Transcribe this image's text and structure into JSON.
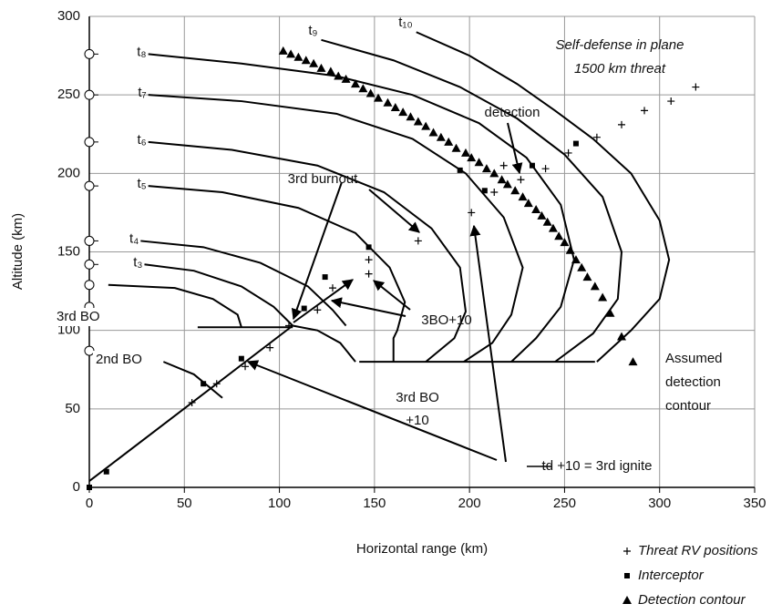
{
  "chart_data": {
    "type": "scatter",
    "xlabel": "Horizontal range (km)",
    "ylabel": "Altitude (km)",
    "xlim": [
      0,
      350
    ],
    "xticks": [
      0,
      50,
      100,
      150,
      200,
      250,
      300,
      350
    ],
    "ylim": [
      0,
      300
    ],
    "yticks": [
      0,
      50,
      100,
      150,
      200,
      250,
      300
    ],
    "grid": true,
    "legend": "lower right",
    "series": [
      {
        "name": "Threat RV positions",
        "marker": "plus",
        "color": "#000000",
        "x": [
          54,
          67,
          82,
          95,
          105,
          120,
          128,
          147,
          147,
          173,
          201,
          213,
          218,
          227,
          240,
          252,
          267,
          280,
          292,
          306,
          319
        ],
        "values": [
          54,
          66,
          77,
          89,
          103,
          113,
          127,
          136,
          145,
          157,
          175,
          188,
          205,
          196,
          203,
          213,
          223,
          231,
          240,
          246,
          255
        ]
      },
      {
        "name": "Interceptor",
        "marker": "square",
        "color": "#000000",
        "x": [
          0,
          9,
          60,
          80,
          113,
          124,
          147,
          195,
          208,
          233,
          256
        ],
        "values": [
          0,
          10,
          66,
          82,
          114,
          134,
          153,
          202,
          189,
          205,
          219
        ]
      },
      {
        "name": "Detection contour",
        "marker": "triangle",
        "color": "#000000",
        "x": [
          102,
          106,
          110,
          114,
          118,
          122,
          127,
          131,
          135,
          140,
          144,
          148,
          152,
          157,
          161,
          165,
          169,
          173,
          177,
          181,
          185,
          189,
          193,
          198,
          201,
          205,
          209,
          213,
          217,
          220,
          224,
          228,
          231,
          235,
          238,
          241,
          244,
          247,
          250,
          253,
          256,
          259,
          262,
          266,
          270,
          274,
          280,
          286
        ],
        "values": [
          278,
          276,
          274,
          272,
          270,
          267,
          265,
          262,
          260,
          257,
          254,
          251,
          248,
          245,
          242,
          239,
          236,
          233,
          230,
          226,
          223,
          220,
          216,
          213,
          210,
          207,
          203,
          200,
          196,
          193,
          189,
          185,
          181,
          177,
          173,
          169,
          165,
          160,
          156,
          151,
          145,
          140,
          134,
          128,
          121,
          111,
          96,
          80
        ]
      }
    ],
    "contour_color": "#000000",
    "contours": [
      {
        "label": "t₁₀",
        "x": [
          172,
          200,
          225,
          245,
          265,
          285,
          300,
          305,
          300,
          285,
          267
        ],
        "y": [
          290,
          275,
          257,
          240,
          222,
          200,
          170,
          145,
          120,
          100,
          80
        ]
      },
      {
        "label": "t₉",
        "x": [
          122,
          160,
          195,
          225,
          250,
          270,
          280,
          278,
          265,
          245
        ],
        "y": [
          285,
          272,
          255,
          235,
          212,
          185,
          150,
          120,
          98,
          80
        ]
      },
      {
        "label": "t₈",
        "x": [
          31,
          80,
          130,
          170,
          205,
          230,
          248,
          255,
          248,
          235,
          222
        ],
        "y": [
          276,
          270,
          262,
          250,
          232,
          210,
          180,
          145,
          115,
          95,
          80
        ]
      },
      {
        "label": "t₇",
        "x": [
          31,
          80,
          130,
          170,
          198,
          218,
          228,
          222,
          212,
          197
        ],
        "y": [
          250,
          246,
          238,
          222,
          200,
          172,
          140,
          110,
          92,
          80
        ]
      },
      {
        "label": "t₆",
        "x": [
          31,
          75,
          120,
          155,
          180,
          195,
          198,
          192,
          177
        ],
        "y": [
          220,
          215,
          205,
          188,
          165,
          140,
          112,
          95,
          80
        ]
      },
      {
        "label": "t₅",
        "x": [
          31,
          70,
          110,
          140,
          158,
          166,
          162,
          160,
          160
        ],
        "y": [
          192,
          188,
          178,
          162,
          140,
          118,
          100,
          95,
          80
        ]
      },
      {
        "label": "t₄",
        "x": [
          27,
          60,
          90,
          115,
          128,
          135
        ],
        "y": [
          157,
          153,
          143,
          128,
          113,
          103
        ]
      },
      {
        "label": "t₃",
        "x": [
          29,
          55,
          80,
          97,
          107
        ],
        "y": [
          142,
          138,
          128,
          115,
          103
        ]
      },
      {
        "x": [
          10,
          45,
          65,
          78,
          80
        ],
        "y": [
          129,
          127,
          120,
          110,
          102
        ]
      },
      {
        "x": [
          57,
          107
        ],
        "y": [
          102,
          102
        ]
      },
      {
        "x": [
          142,
          266
        ],
        "y": [
          80,
          80
        ]
      },
      {
        "x": [
          0,
          107
        ],
        "y": [
          4,
          103
        ]
      },
      {
        "x": [
          107,
          120,
          132,
          140
        ],
        "y": [
          103,
          100,
          92,
          80
        ]
      },
      {
        "x": [
          39,
          55,
          70
        ],
        "y": [
          80,
          72,
          57
        ]
      }
    ],
    "annotations": [
      "Self-defense in plane",
      "1500 km threat",
      "detection",
      "3rd burnout",
      "3BO+10",
      "3rd BO",
      "+10",
      "td +10 = 3rd ignite",
      "Assumed",
      "detection",
      "contour",
      "3rd BO",
      "2nd BO"
    ]
  }
}
